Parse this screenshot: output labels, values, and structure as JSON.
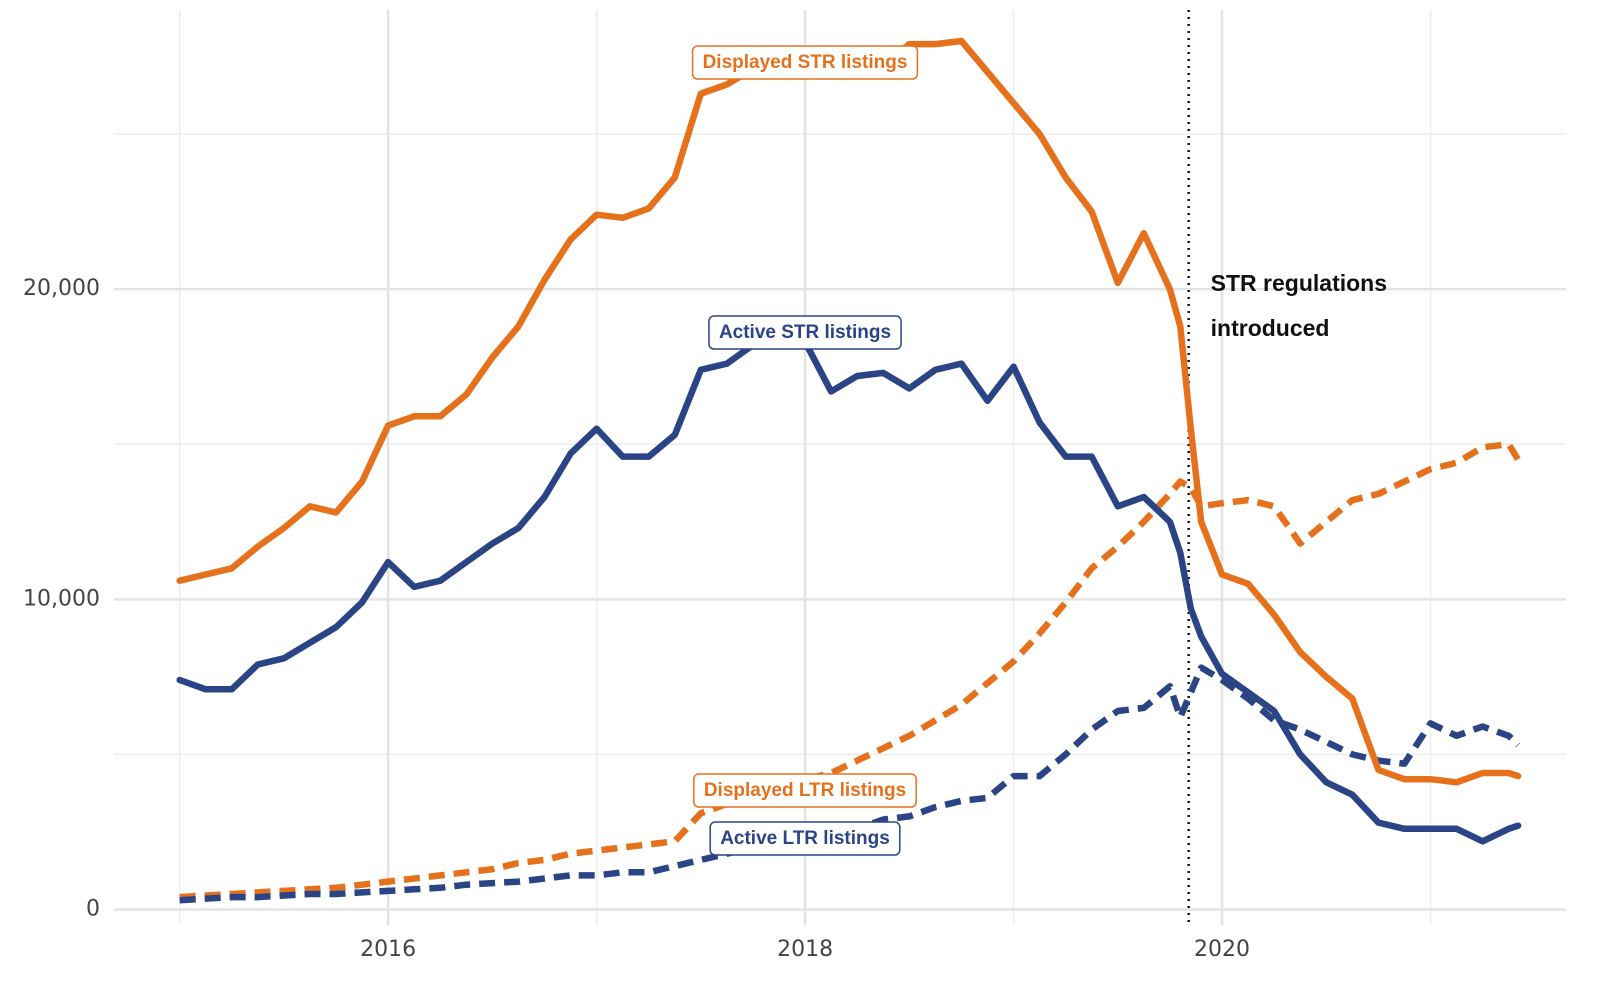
{
  "chart_data": {
    "type": "line",
    "x": [
      2015.0,
      2015.125,
      2015.25,
      2015.375,
      2015.5,
      2015.625,
      2015.75,
      2015.875,
      2016.0,
      2016.125,
      2016.25,
      2016.375,
      2016.5,
      2016.625,
      2016.75,
      2016.875,
      2017.0,
      2017.125,
      2017.25,
      2017.375,
      2017.5,
      2017.625,
      2017.75,
      2017.875,
      2018.0,
      2018.125,
      2018.25,
      2018.375,
      2018.5,
      2018.625,
      2018.75,
      2018.875,
      2019.0,
      2019.125,
      2019.25,
      2019.375,
      2019.5,
      2019.625,
      2019.75,
      2019.8,
      2019.85,
      2019.9,
      2020.0,
      2020.125,
      2020.25,
      2020.375,
      2020.5,
      2020.625,
      2020.75,
      2020.875,
      2021.0,
      2021.125,
      2021.25,
      2021.375,
      2021.42
    ],
    "series": [
      {
        "name": "Displayed STR listings",
        "color": "#e5711d",
        "dashed": false,
        "values": [
          10600,
          10800,
          11000,
          11700,
          12300,
          13000,
          12800,
          13800,
          15600,
          15900,
          15900,
          16600,
          17800,
          18800,
          20300,
          21600,
          22400,
          22300,
          22600,
          23600,
          26300,
          26600,
          27100,
          27300,
          27400,
          27100,
          27300,
          27200,
          27900,
          27900,
          28000,
          27000,
          26000,
          25000,
          23600,
          22500,
          20200,
          21800,
          20000,
          18800,
          15500,
          12500,
          10800,
          10500,
          9500,
          8300,
          7500,
          6800,
          4500,
          4200,
          4200,
          4100,
          4400,
          4400,
          4300
        ]
      },
      {
        "name": "Active STR listings",
        "color": "#2b4486",
        "dashed": false,
        "values": [
          7400,
          7100,
          7100,
          7900,
          8100,
          8600,
          9100,
          9900,
          11200,
          10400,
          10600,
          11200,
          11800,
          12300,
          13300,
          14700,
          15500,
          14600,
          14600,
          15300,
          17400,
          17600,
          18200,
          18200,
          18300,
          16700,
          17200,
          17300,
          16800,
          17400,
          17600,
          16400,
          17500,
          15700,
          14600,
          14600,
          13000,
          13300,
          12500,
          11500,
          9700,
          8800,
          7600,
          7000,
          6400,
          5000,
          4100,
          3700,
          2800,
          2600,
          2600,
          2600,
          2200,
          2600,
          2700
        ]
      },
      {
        "name": "Displayed LTR listings",
        "color": "#e5711d",
        "dashed": true,
        "values": [
          400,
          450,
          500,
          550,
          600,
          650,
          700,
          800,
          900,
          1000,
          1100,
          1200,
          1300,
          1500,
          1600,
          1800,
          1900,
          2000,
          2100,
          2200,
          3100,
          3400,
          3700,
          4000,
          4200,
          4400,
          4800,
          5200,
          5600,
          6100,
          6600,
          7300,
          8000,
          8900,
          9900,
          11000,
          11700,
          12500,
          13400,
          13800,
          13600,
          13000,
          13100,
          13200,
          13000,
          11800,
          12500,
          13200,
          13400,
          13800,
          14200,
          14400,
          14900,
          15000,
          14500
        ]
      },
      {
        "name": "Active LTR listings",
        "color": "#2b4486",
        "dashed": true,
        "values": [
          300,
          350,
          400,
          400,
          450,
          500,
          500,
          550,
          600,
          650,
          700,
          800,
          850,
          900,
          1000,
          1100,
          1100,
          1200,
          1200,
          1400,
          1600,
          1800,
          2000,
          2200,
          2400,
          2500,
          2600,
          2900,
          3000,
          3300,
          3500,
          3600,
          4300,
          4300,
          5000,
          5800,
          6400,
          6500,
          7200,
          6200,
          7000,
          7800,
          7400,
          6800,
          6100,
          5800,
          5400,
          5000,
          4800,
          4700,
          6000,
          5600,
          5900,
          5600,
          5300
        ]
      }
    ],
    "xlim": [
      2014.685,
      2021.65
    ],
    "ylim": [
      -500,
      29000
    ],
    "xticks": [
      2016,
      2018,
      2020
    ],
    "yticks": [
      0,
      {
        "value": 10000,
        "label": "10,000"
      },
      {
        "value": 20000,
        "label": "20,000"
      }
    ],
    "xgrid_minor": [
      2015,
      2017,
      2019,
      2021
    ],
    "ygrid_minor": [
      5000,
      15000,
      25000
    ],
    "grid": true,
    "event": {
      "x": 2019.84,
      "label_lines": [
        "STR regulations",
        "introduced"
      ]
    }
  }
}
